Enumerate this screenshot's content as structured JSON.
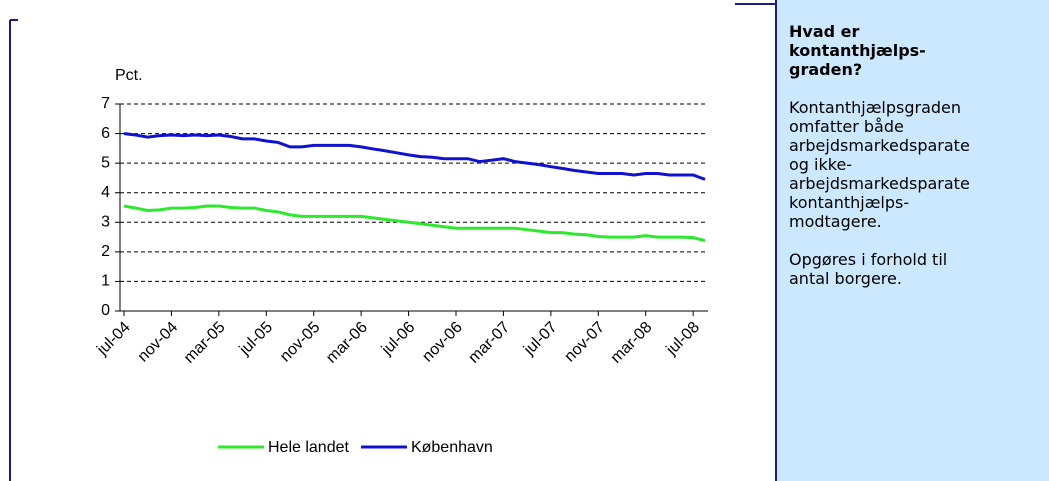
{
  "chart_data": {
    "type": "line",
    "ylabel": "Pct.",
    "categories": [
      "jul-04",
      null,
      null,
      null,
      "nov-04",
      null,
      null,
      null,
      "mar-05",
      null,
      null,
      null,
      "jul-05",
      null,
      null,
      null,
      "nov-05",
      null,
      null,
      null,
      "mar-06",
      null,
      null,
      null,
      "jul-06",
      null,
      null,
      null,
      "nov-06",
      null,
      null,
      null,
      "mar-07",
      null,
      null,
      null,
      "jul-07",
      null,
      null,
      null,
      "nov-07",
      null,
      null,
      null,
      "mar-08",
      null,
      null,
      null,
      "jul-08",
      null
    ],
    "series": [
      {
        "name": "Hele landet",
        "color": "#2ee82e",
        "values": [
          3.55,
          3.48,
          3.4,
          3.42,
          3.48,
          3.48,
          3.5,
          3.55,
          3.55,
          3.5,
          3.48,
          3.48,
          3.4,
          3.35,
          3.25,
          3.2,
          3.2,
          3.2,
          3.2,
          3.2,
          3.2,
          3.15,
          3.1,
          3.05,
          3.0,
          2.95,
          2.9,
          2.85,
          2.8,
          2.8,
          2.8,
          2.8,
          2.8,
          2.8,
          2.75,
          2.7,
          2.65,
          2.65,
          2.6,
          2.58,
          2.52,
          2.5,
          2.5,
          2.5,
          2.55,
          2.5,
          2.5,
          2.5,
          2.48,
          2.38
        ]
      },
      {
        "name": "København",
        "color": "#1010d0",
        "values": [
          6.0,
          5.95,
          5.88,
          5.93,
          5.95,
          5.93,
          5.95,
          5.93,
          5.95,
          5.9,
          5.82,
          5.82,
          5.75,
          5.7,
          5.55,
          5.55,
          5.6,
          5.6,
          5.6,
          5.6,
          5.55,
          5.48,
          5.42,
          5.35,
          5.28,
          5.22,
          5.2,
          5.15,
          5.15,
          5.15,
          5.05,
          5.1,
          5.15,
          5.05,
          5.0,
          4.95,
          4.88,
          4.82,
          4.75,
          4.7,
          4.65,
          4.65,
          4.65,
          4.6,
          4.65,
          4.65,
          4.6,
          4.6,
          4.6,
          4.45
        ]
      }
    ],
    "ylim": [
      0,
      7
    ],
    "yticks": [
      0,
      1,
      2,
      3,
      4,
      5,
      6,
      7
    ],
    "grid": true,
    "legend": "bottom"
  },
  "sidebar": {
    "title_lines": [
      "Hvad er",
      "kontanthjælps-",
      "graden?"
    ],
    "paragraphs": [
      [
        "Kontanthjælpsgraden",
        "omfatter både",
        "arbejdsmarkedsparate",
        "og ikke-",
        "arbejdsmarkedsparate",
        "kontanthjælps-",
        "modtagere."
      ],
      [
        "Opgøres i forhold til",
        "antal borgere."
      ]
    ]
  }
}
